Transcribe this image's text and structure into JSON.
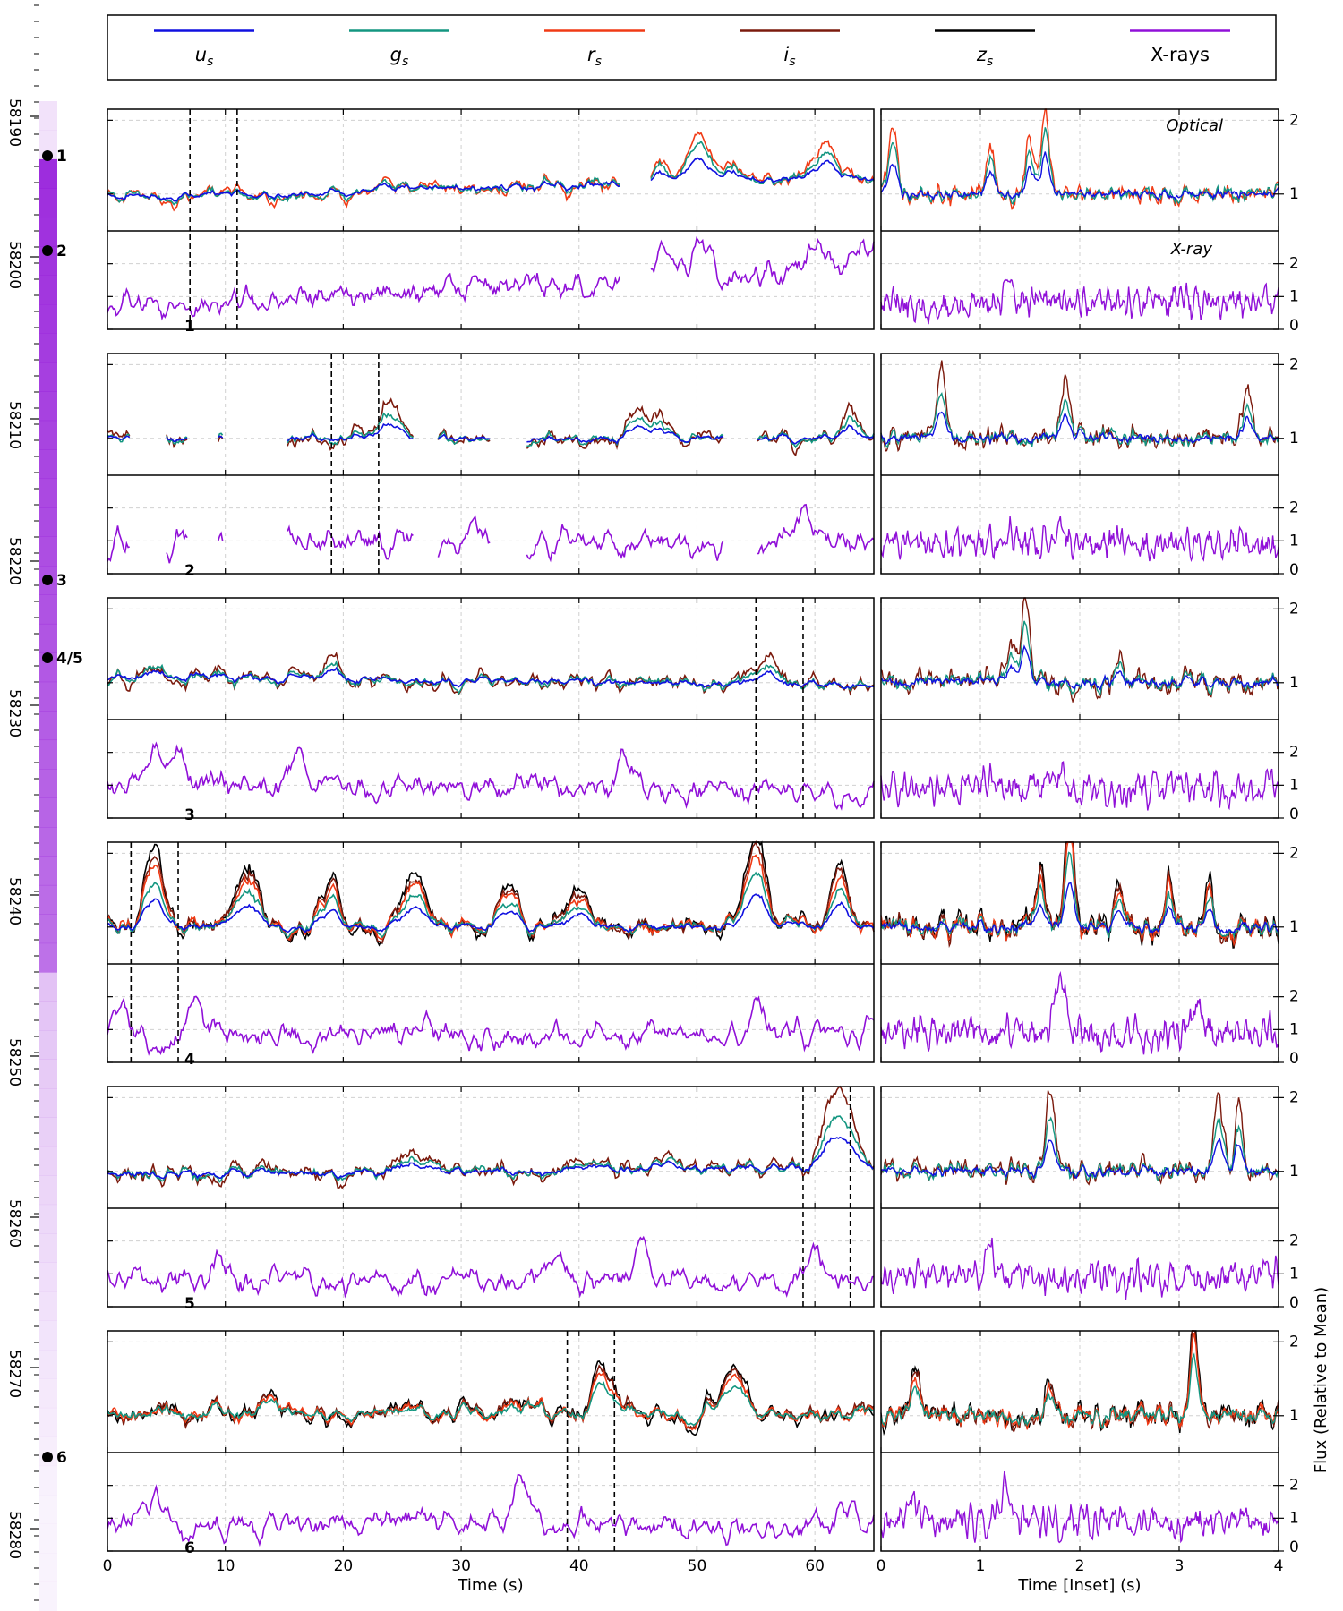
{
  "legend": [
    {
      "label": "u",
      "sub": "s",
      "italic": true,
      "color": "#1010e0"
    },
    {
      "label": "g",
      "sub": "s",
      "italic": true,
      "color": "#139680"
    },
    {
      "label": "r",
      "sub": "s",
      "italic": true,
      "color": "#f03a15"
    },
    {
      "label": "i",
      "sub": "s",
      "italic": true,
      "color": "#7b1a0d"
    },
    {
      "label": "z",
      "sub": "s",
      "italic": true,
      "color": "#000000"
    },
    {
      "label": "X-rays",
      "sub": "",
      "italic": false,
      "color": "#9010d8"
    }
  ],
  "labels": {
    "optical": "Optical",
    "xray": "X-ray",
    "xlabel_main": "Time (s)",
    "xlabel_inset": "Time [Inset] (s)",
    "ylabel_right": "Flux (Relative to Mean)"
  },
  "timeline": {
    "ticks": [
      "58190",
      "58200",
      "58210",
      "58220",
      "58230",
      "58240",
      "58250",
      "58260",
      "58270",
      "58280"
    ],
    "markers": [
      "1",
      "2",
      "3",
      "4/5",
      "6"
    ]
  },
  "axes": {
    "main_xticks": [
      "0",
      "10",
      "20",
      "30",
      "40",
      "50",
      "60"
    ],
    "main_xlim": [
      0,
      65
    ],
    "inset_xticks": [
      "0",
      "1",
      "2",
      "3",
      "4"
    ],
    "inset_xlim": [
      0,
      4
    ],
    "optical_yticks": [
      "1",
      "2"
    ],
    "optical_ylim": [
      0.5,
      2.15
    ],
    "xray_yticks": [
      "0",
      "1",
      "2"
    ],
    "xray_ylim": [
      0,
      3
    ]
  },
  "chart_data": {
    "type": "line",
    "grid": true,
    "panels": [
      {
        "id": "1",
        "bands": [
          "u",
          "g",
          "r"
        ],
        "window": [
          7,
          11
        ],
        "gaps": [
          [
            43.5,
            46
          ]
        ],
        "bumps": [
          [
            50,
            0.7
          ],
          [
            47,
            0.3
          ],
          [
            61,
            0.4
          ],
          [
            53,
            0.25
          ]
        ],
        "trend": [
          0.95,
          1.22
        ],
        "xray_bumps": [
          [
            47.5,
            1.1
          ],
          [
            50.5,
            1.3
          ],
          [
            60,
            0.9
          ],
          [
            64,
            0.7
          ]
        ],
        "xray_trend": [
          0.6,
          1.9
        ],
        "inset_bumps": [
          [
            0.12,
            0.9
          ],
          [
            1.1,
            0.7
          ],
          [
            1.5,
            0.8
          ],
          [
            1.65,
            1.1
          ]
        ],
        "inset_xray_bumps": [
          [
            1.3,
            0.3
          ]
        ],
        "xray_mean": 0.8
      },
      {
        "id": "2",
        "bands": [
          "u",
          "g",
          "i"
        ],
        "window": [
          19,
          23
        ],
        "gaps": [
          [
            2,
            5
          ],
          [
            6.8,
            9.3
          ],
          [
            9.8,
            15.2
          ],
          [
            26,
            28
          ],
          [
            32.5,
            35.5
          ],
          [
            52.3,
            55
          ]
        ],
        "bumps": [
          [
            24,
            0.4
          ],
          [
            45,
            0.3
          ],
          [
            47,
            0.25
          ],
          [
            63,
            0.3
          ]
        ],
        "trend": [
          1.0,
          1.0
        ],
        "xray_bumps": [
          [
            59,
            1.0
          ],
          [
            31,
            0.5
          ]
        ],
        "xray_trend": [
          0.9,
          0.9
        ],
        "inset_bumps": [
          [
            0.6,
            0.8
          ],
          [
            1.85,
            0.7
          ],
          [
            3.7,
            0.6
          ]
        ],
        "inset_xray_bumps": [
          [
            1.3,
            0.4
          ],
          [
            1.8,
            0.3
          ]
        ],
        "xray_mean": 0.9
      },
      {
        "id": "3",
        "bands": [
          "u",
          "g",
          "i"
        ],
        "window": [
          55,
          59
        ],
        "gaps": [],
        "bumps": [
          [
            19,
            0.25
          ],
          [
            56,
            0.3
          ],
          [
            4,
            0.2
          ]
        ],
        "trend": [
          1.1,
          0.95
        ],
        "xray_bumps": [
          [
            4,
            0.9
          ],
          [
            6,
            0.9
          ],
          [
            16,
            0.9
          ],
          [
            44,
            0.9
          ]
        ],
        "xray_trend": [
          1.0,
          0.8
        ],
        "inset_bumps": [
          [
            1.45,
            1.0
          ],
          [
            1.3,
            0.4
          ],
          [
            2.4,
            0.3
          ]
        ],
        "inset_xray_bumps": [
          [
            1.1,
            0.3
          ],
          [
            1.8,
            0.3
          ]
        ],
        "xray_mean": 0.9
      },
      {
        "id": "4",
        "bands": [
          "u",
          "g",
          "r",
          "i",
          "z"
        ],
        "window": [
          2,
          6
        ],
        "gaps": [],
        "bumps": [
          [
            4,
            0.8
          ],
          [
            12,
            0.6
          ],
          [
            19,
            0.5
          ],
          [
            26,
            0.6
          ],
          [
            34,
            0.5
          ],
          [
            40,
            0.4
          ],
          [
            55,
            1.0
          ],
          [
            62,
            0.6
          ]
        ],
        "trend": [
          1.0,
          1.0
        ],
        "xray_bumps": [
          [
            1,
            1.0
          ],
          [
            7.5,
            1.3
          ],
          [
            55,
            1.0
          ],
          [
            27,
            0.5
          ]
        ],
        "xray_trend": [
          0.8,
          0.8
        ],
        "inset_bumps": [
          [
            1.9,
            1.3
          ],
          [
            1.6,
            0.6
          ],
          [
            2.4,
            0.5
          ],
          [
            2.9,
            0.5
          ],
          [
            3.3,
            0.5
          ]
        ],
        "inset_xray_bumps": [
          [
            1.8,
            1.6
          ],
          [
            3.2,
            0.8
          ]
        ],
        "xray_mean": 0.9
      },
      {
        "id": "5",
        "bands": [
          "u",
          "g",
          "i"
        ],
        "window": [
          59,
          63
        ],
        "gaps": [],
        "bumps": [
          [
            26,
            0.3
          ],
          [
            61.5,
            0.8
          ],
          [
            63,
            0.5
          ],
          [
            47,
            0.2
          ]
        ],
        "trend": [
          0.95,
          1.05
        ],
        "xray_bumps": [
          [
            9.5,
            0.8
          ],
          [
            38,
            0.9
          ],
          [
            45.5,
            1.0
          ],
          [
            60,
            0.9
          ]
        ],
        "xray_trend": [
          0.8,
          0.8
        ],
        "inset_bumps": [
          [
            1.7,
            1.0
          ],
          [
            3.4,
            1.0
          ],
          [
            3.6,
            0.7
          ]
        ],
        "inset_xray_bumps": [
          [
            1.1,
            0.8
          ]
        ],
        "xray_mean": 0.9
      },
      {
        "id": "6",
        "bands": [
          "g",
          "r",
          "i",
          "z"
        ],
        "window": [
          39,
          43
        ],
        "gaps": [],
        "bumps": [
          [
            42,
            0.5
          ],
          [
            53,
            0.6
          ],
          [
            14,
            0.25
          ],
          [
            35,
            0.2
          ]
        ],
        "trend": [
          1.05,
          1.0
        ],
        "xray_bumps": [
          [
            35,
            1.2
          ],
          [
            4,
            0.7
          ],
          [
            63,
            0.7
          ]
        ],
        "xray_trend": [
          0.8,
          0.8
        ],
        "inset_bumps": [
          [
            3.15,
            1.1
          ],
          [
            0.35,
            0.45
          ],
          [
            1.7,
            0.3
          ]
        ],
        "inset_xray_bumps": [
          [
            1.25,
            0.9
          ],
          [
            0.35,
            0.6
          ]
        ],
        "xray_mean": 0.9
      }
    ]
  }
}
